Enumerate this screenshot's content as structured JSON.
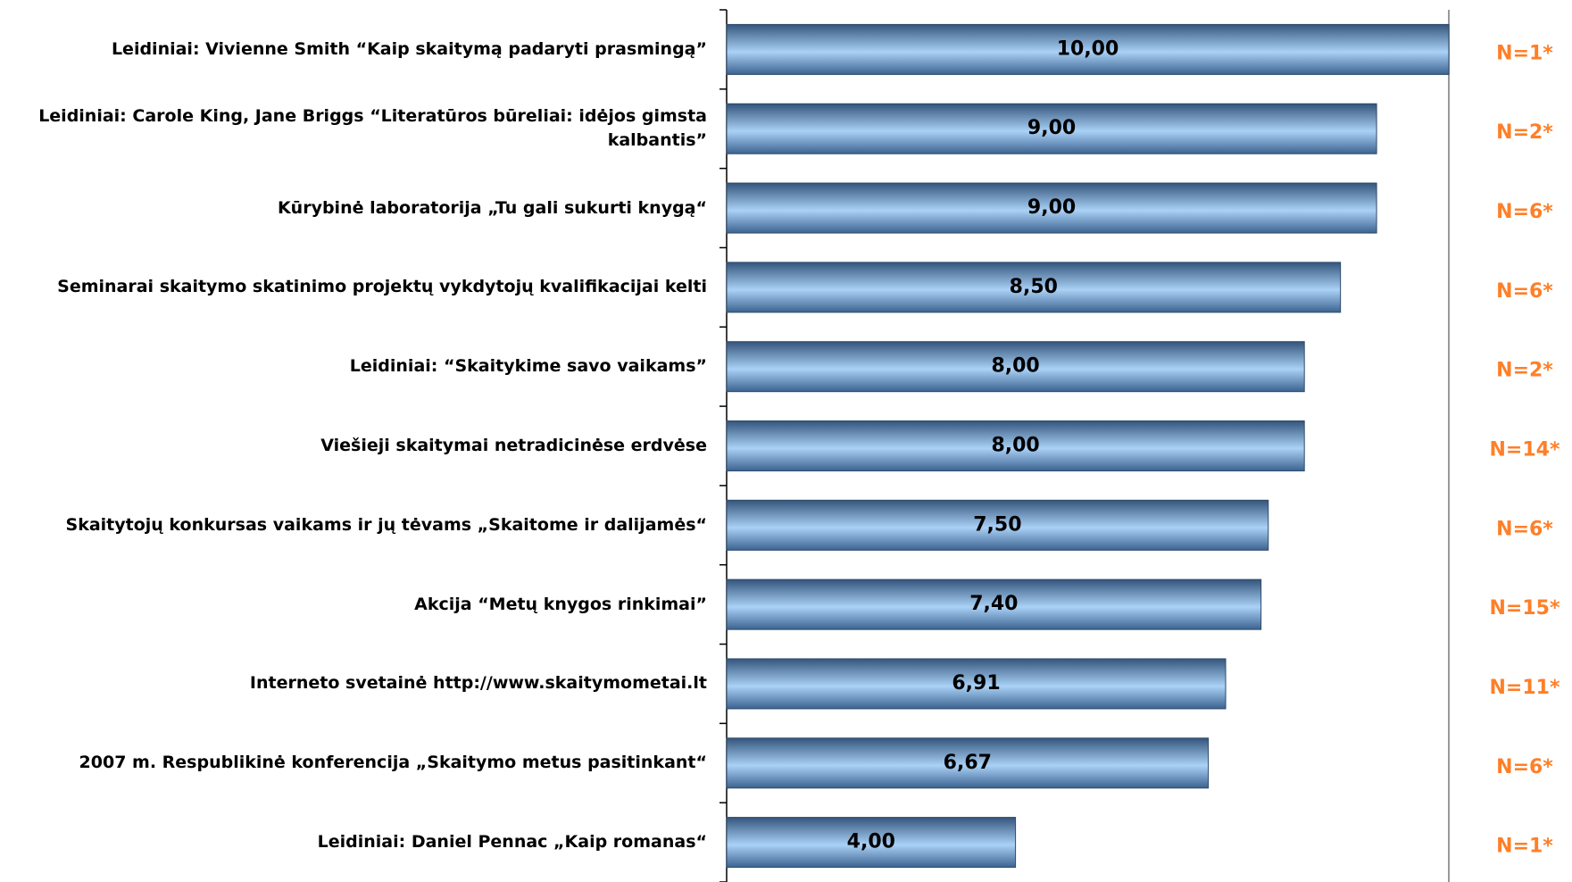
{
  "chart_data": {
    "type": "bar",
    "orientation": "horizontal",
    "categories": [
      "Leidiniai: Vivienne Smith “Kaip skaitymą padaryti prasmingą”",
      "Leidiniai: Carole King, Jane Briggs “Literatūros būreliai: idėjos gimsta kalbantis”",
      "Kūrybinė laboratorija „Tu gali sukurti knygą“",
      "Seminarai skaitymo skatinimo projektų vykdytojų kvalifikacijai kelti",
      "Leidiniai: “Skaitykime savo vaikams”",
      "Viešieji skaitymai netradicinėse erdvėse",
      "Skaitytojų konkursas vaikams ir jų tėvams „Skaitome ir dalijamės“",
      "Akcija “Metų knygos rinkimai”",
      "Interneto svetainė http://www.skaitymometai.lt",
      "2007 m. Respublikinė konferencija „Skaitymo metus pasitinkant“",
      "Leidiniai: Daniel Pennac „Kaip romanas“"
    ],
    "values": [
      10,
      9,
      9,
      8.5,
      8,
      8,
      7.5,
      7.4,
      6.91,
      6.67,
      4
    ],
    "value_labels": [
      "10,00",
      "9,00",
      "9,00",
      "8,50",
      "8,00",
      "8,00",
      "7,50",
      "7,40",
      "6,91",
      "6,67",
      "4,00"
    ],
    "annotations": [
      "N=1*",
      "N=2*",
      "N=6*",
      "N=6*",
      "N=2*",
      "N=14*",
      "N=6*",
      "N=15*",
      "N=11*",
      "N=6*",
      "N=1*"
    ],
    "color": "#7fa9d6",
    "annotation_color": "#ff7f27",
    "xlim": [
      0,
      10
    ]
  }
}
